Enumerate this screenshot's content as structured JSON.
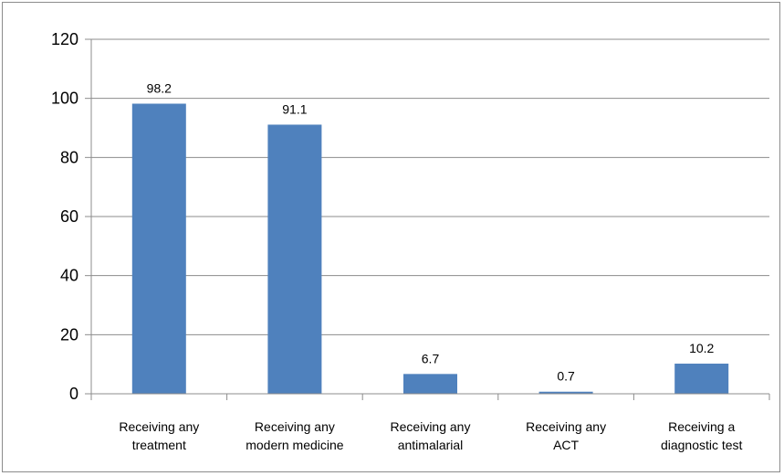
{
  "chart_data": {
    "type": "bar",
    "categories": [
      [
        "Receiving any",
        "treatment"
      ],
      [
        "Receiving  any",
        "modern medicine"
      ],
      [
        "Receiving  any",
        "antimalarial"
      ],
      [
        "Receiving  any",
        "ACT"
      ],
      [
        "Receiving  a",
        "diagnostic test"
      ]
    ],
    "values": [
      98.2,
      91.1,
      6.7,
      0.7,
      10.2
    ],
    "data_labels": [
      "98.2",
      "91.1",
      "6.7",
      "0.7",
      "10.2"
    ],
    "ylim": [
      0,
      120
    ],
    "yticks": [
      0,
      20,
      40,
      60,
      80,
      100,
      120
    ],
    "bar_color": "#4f81bd",
    "gridlines": true
  }
}
